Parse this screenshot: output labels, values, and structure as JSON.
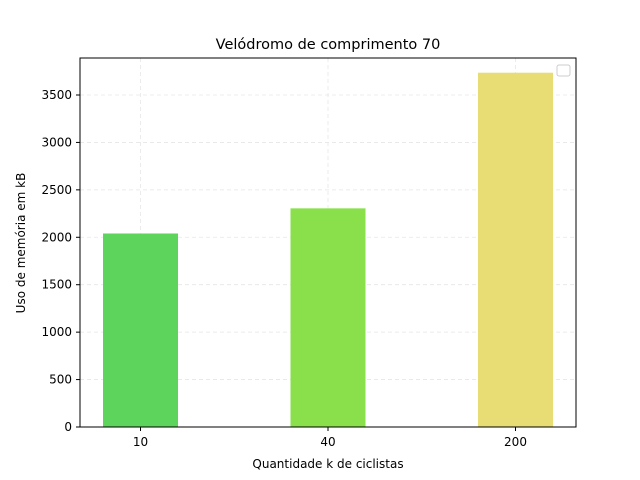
{
  "chart_data": {
    "type": "bar",
    "title": "Velódromo de comprimento 70",
    "xlabel": "Quantidade k de ciclistas",
    "ylabel": "Uso de memória em kB",
    "categories": [
      "10",
      "40",
      "200"
    ],
    "values": [
      2040,
      2305,
      3735
    ],
    "colors": [
      "#5dd55d",
      "#89e04b",
      "#e8dc74"
    ],
    "ylim": [
      0,
      3890
    ],
    "yticks": [
      0,
      500,
      1000,
      1500,
      2000,
      2500,
      3000,
      3500
    ],
    "grid": true,
    "legend": "top-right (empty)"
  }
}
